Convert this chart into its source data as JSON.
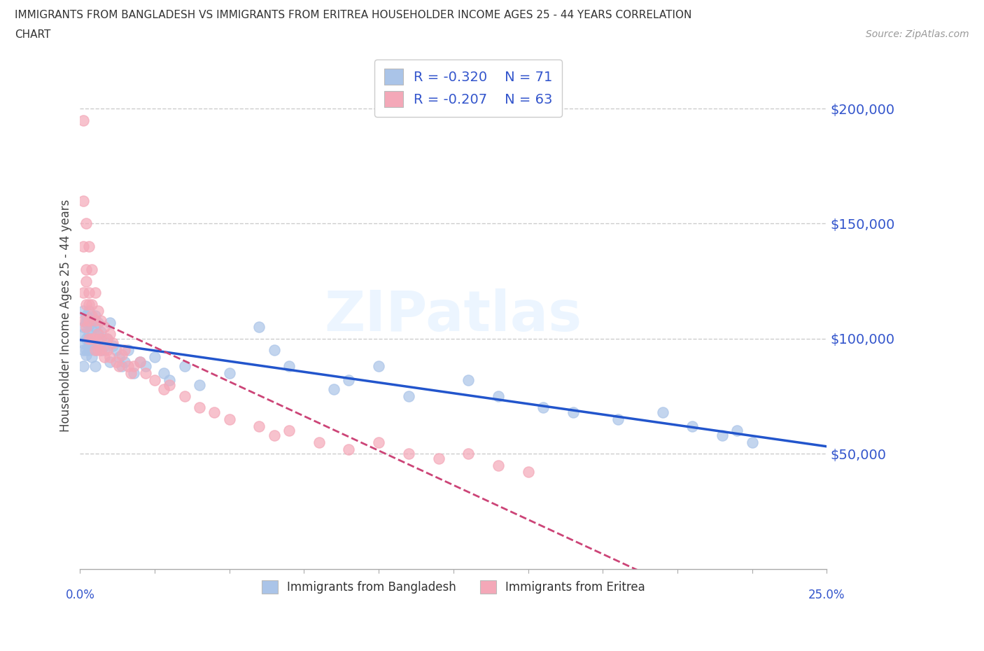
{
  "title_line1": "IMMIGRANTS FROM BANGLADESH VS IMMIGRANTS FROM ERITREA HOUSEHOLDER INCOME AGES 25 - 44 YEARS CORRELATION",
  "title_line2": "CHART",
  "source_text": "Source: ZipAtlas.com",
  "ylabel": "Householder Income Ages 25 - 44 years",
  "xlim": [
    0.0,
    0.25
  ],
  "ylim": [
    0,
    220000
  ],
  "ytick_values": [
    50000,
    100000,
    150000,
    200000
  ],
  "ytick_labels": [
    "$50,000",
    "$100,000",
    "$150,000",
    "$200,000"
  ],
  "grid_color": "#cccccc",
  "background_color": "#ffffff",
  "bangladesh_color": "#aac4e8",
  "eritrea_color": "#f4a8b8",
  "trend_bangladesh_color": "#2255cc",
  "trend_eritrea_color": "#cc4477",
  "legend_text_color": "#3355cc",
  "watermark": "ZIPatlas",
  "label_bangladesh": "Immigrants from Bangladesh",
  "label_eritrea": "Immigrants from Eritrea",
  "bangladesh_x": [
    0.001,
    0.001,
    0.001,
    0.001,
    0.001,
    0.001,
    0.002,
    0.002,
    0.002,
    0.002,
    0.002,
    0.002,
    0.003,
    0.003,
    0.003,
    0.003,
    0.003,
    0.003,
    0.004,
    0.004,
    0.004,
    0.004,
    0.004,
    0.005,
    0.005,
    0.005,
    0.005,
    0.005,
    0.006,
    0.006,
    0.006,
    0.007,
    0.007,
    0.007,
    0.008,
    0.008,
    0.009,
    0.01,
    0.01,
    0.011,
    0.012,
    0.013,
    0.014,
    0.015,
    0.016,
    0.018,
    0.02,
    0.022,
    0.025,
    0.028,
    0.03,
    0.035,
    0.04,
    0.05,
    0.06,
    0.065,
    0.07,
    0.085,
    0.09,
    0.1,
    0.11,
    0.13,
    0.14,
    0.155,
    0.165,
    0.18,
    0.195,
    0.205,
    0.215,
    0.22,
    0.225
  ],
  "bangladesh_y": [
    105000,
    98000,
    112000,
    95000,
    88000,
    102000,
    108000,
    100000,
    95000,
    107000,
    93000,
    110000,
    102000,
    97000,
    106000,
    112000,
    95000,
    100000,
    98000,
    104000,
    92000,
    108000,
    100000,
    105000,
    97000,
    95000,
    110000,
    88000,
    102000,
    96000,
    107000,
    100000,
    95000,
    103000,
    97000,
    95000,
    100000,
    107000,
    90000,
    97000,
    95000,
    92000,
    88000,
    90000,
    95000,
    85000,
    90000,
    88000,
    92000,
    85000,
    82000,
    88000,
    80000,
    85000,
    105000,
    95000,
    88000,
    78000,
    82000,
    88000,
    75000,
    82000,
    75000,
    70000,
    68000,
    65000,
    68000,
    62000,
    58000,
    60000,
    55000
  ],
  "eritrea_x": [
    0.001,
    0.001,
    0.001,
    0.001,
    0.001,
    0.002,
    0.002,
    0.002,
    0.002,
    0.002,
    0.003,
    0.003,
    0.003,
    0.003,
    0.003,
    0.004,
    0.004,
    0.004,
    0.004,
    0.005,
    0.005,
    0.005,
    0.005,
    0.006,
    0.006,
    0.006,
    0.007,
    0.007,
    0.007,
    0.008,
    0.008,
    0.009,
    0.009,
    0.01,
    0.01,
    0.011,
    0.012,
    0.013,
    0.014,
    0.015,
    0.016,
    0.017,
    0.018,
    0.02,
    0.022,
    0.025,
    0.028,
    0.03,
    0.035,
    0.04,
    0.045,
    0.05,
    0.06,
    0.065,
    0.07,
    0.08,
    0.09,
    0.1,
    0.11,
    0.12,
    0.13,
    0.14,
    0.15
  ],
  "eritrea_y": [
    195000,
    160000,
    140000,
    120000,
    108000,
    150000,
    130000,
    115000,
    105000,
    125000,
    140000,
    120000,
    108000,
    100000,
    115000,
    130000,
    115000,
    100000,
    110000,
    120000,
    108000,
    100000,
    95000,
    112000,
    102000,
    95000,
    108000,
    100000,
    95000,
    105000,
    92000,
    100000,
    95000,
    102000,
    92000,
    98000,
    90000,
    88000,
    93000,
    95000,
    88000,
    85000,
    88000,
    90000,
    85000,
    82000,
    78000,
    80000,
    75000,
    70000,
    68000,
    65000,
    62000,
    58000,
    60000,
    55000,
    52000,
    55000,
    50000,
    48000,
    50000,
    45000,
    42000
  ]
}
